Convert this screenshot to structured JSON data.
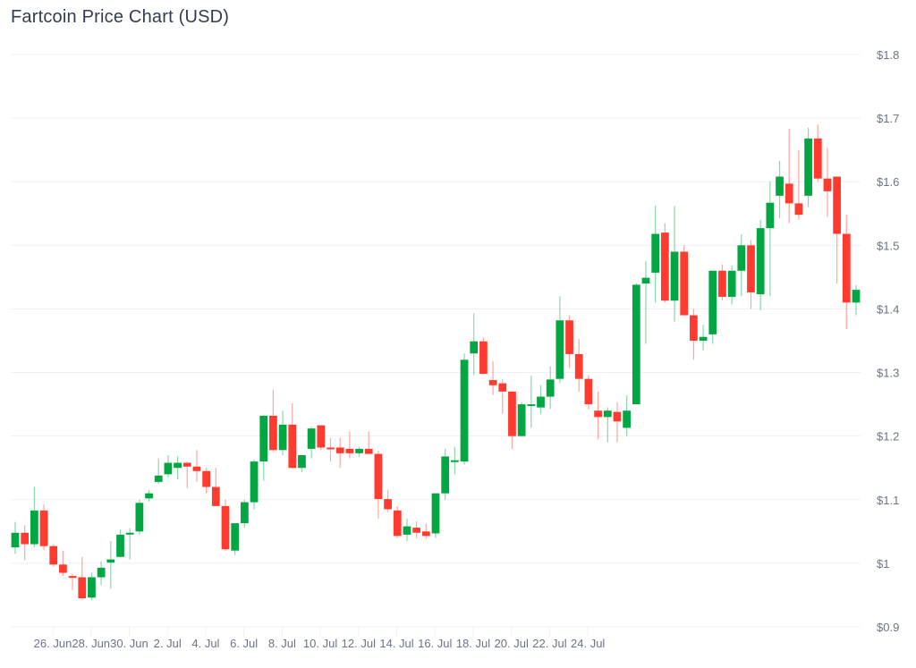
{
  "header": {
    "title": "Fartcoin Price Chart (USD)"
  },
  "colors": {
    "up": "#02a642",
    "down": "#ff3b30",
    "grid": "#eef0f3",
    "axis_text": "#6b7486"
  },
  "chart_data": {
    "type": "candlestick",
    "title": "Fartcoin Price Chart (USD)",
    "xlabel": "",
    "ylabel": "",
    "ylim": [
      0.9,
      1.8
    ],
    "grid": true,
    "legend": null,
    "y_ticks": [
      "$0.9",
      "$1",
      "$1.1",
      "$1.2",
      "$1.3",
      "$1.4",
      "$1.5",
      "$1.6",
      "$1.7",
      "$1.8"
    ],
    "x_ticks": [
      "26. Jun",
      "28. Jun",
      "30. Jun",
      "2. Jul",
      "4. Jul",
      "6. Jul",
      "8. Jul",
      "10. Jul",
      "12. Jul",
      "14. Jul",
      "16. Jul",
      "18. Jul",
      "20. Jul",
      "22. Jul",
      "24. Jul"
    ],
    "interval": "12h",
    "candles": [
      {
        "o": 1.025,
        "h": 1.065,
        "l": 1.015,
        "c": 1.048
      },
      {
        "o": 1.048,
        "h": 1.06,
        "l": 1.005,
        "c": 1.03
      },
      {
        "o": 1.03,
        "h": 1.12,
        "l": 1.025,
        "c": 1.083
      },
      {
        "o": 1.083,
        "h": 1.093,
        "l": 1.021,
        "c": 1.027
      },
      {
        "o": 1.027,
        "h": 1.03,
        "l": 0.995,
        "c": 0.998
      },
      {
        "o": 0.998,
        "h": 1.02,
        "l": 0.98,
        "c": 0.985
      },
      {
        "o": 0.98,
        "h": 0.983,
        "l": 0.958,
        "c": 0.977
      },
      {
        "o": 0.978,
        "h": 1.01,
        "l": 0.943,
        "c": 0.945
      },
      {
        "o": 0.946,
        "h": 0.985,
        "l": 0.942,
        "c": 0.978
      },
      {
        "o": 0.978,
        "h": 1.003,
        "l": 0.966,
        "c": 0.993
      },
      {
        "o": 1.001,
        "h": 1.035,
        "l": 0.96,
        "c": 1.006
      },
      {
        "o": 1.01,
        "h": 1.053,
        "l": 1.01,
        "c": 1.045
      },
      {
        "o": 1.047,
        "h": 1.055,
        "l": 1.006,
        "c": 1.048
      },
      {
        "o": 1.05,
        "h": 1.1,
        "l": 1.045,
        "c": 1.095
      },
      {
        "o": 1.102,
        "h": 1.115,
        "l": 1.097,
        "c": 1.11
      },
      {
        "o": 1.128,
        "h": 1.165,
        "l": 1.125,
        "c": 1.138
      },
      {
        "o": 1.14,
        "h": 1.17,
        "l": 1.135,
        "c": 1.158
      },
      {
        "o": 1.15,
        "h": 1.168,
        "l": 1.132,
        "c": 1.158
      },
      {
        "o": 1.158,
        "h": 1.16,
        "l": 1.118,
        "c": 1.152
      },
      {
        "o": 1.152,
        "h": 1.178,
        "l": 1.128,
        "c": 1.145
      },
      {
        "o": 1.145,
        "h": 1.15,
        "l": 1.11,
        "c": 1.12
      },
      {
        "o": 1.12,
        "h": 1.15,
        "l": 1.09,
        "c": 1.09
      },
      {
        "o": 1.09,
        "h": 1.1,
        "l": 1.02,
        "c": 1.022
      },
      {
        "o": 1.02,
        "h": 1.06,
        "l": 1.013,
        "c": 1.063
      },
      {
        "o": 1.063,
        "h": 1.1,
        "l": 1.056,
        "c": 1.096
      },
      {
        "o": 1.096,
        "h": 1.163,
        "l": 1.085,
        "c": 1.16
      },
      {
        "o": 1.16,
        "h": 1.233,
        "l": 1.13,
        "c": 1.232
      },
      {
        "o": 1.232,
        "h": 1.273,
        "l": 1.175,
        "c": 1.178
      },
      {
        "o": 1.178,
        "h": 1.24,
        "l": 1.17,
        "c": 1.218
      },
      {
        "o": 1.218,
        "h": 1.252,
        "l": 1.149,
        "c": 1.15
      },
      {
        "o": 1.15,
        "h": 1.165,
        "l": 1.143,
        "c": 1.17
      },
      {
        "o": 1.18,
        "h": 1.215,
        "l": 1.165,
        "c": 1.212
      },
      {
        "o": 1.217,
        "h": 1.217,
        "l": 1.178,
        "c": 1.182
      },
      {
        "o": 1.182,
        "h": 1.197,
        "l": 1.16,
        "c": 1.18
      },
      {
        "o": 1.182,
        "h": 1.197,
        "l": 1.15,
        "c": 1.173
      },
      {
        "o": 1.18,
        "h": 1.207,
        "l": 1.165,
        "c": 1.173
      },
      {
        "o": 1.173,
        "h": 1.183,
        "l": 1.167,
        "c": 1.18
      },
      {
        "o": 1.18,
        "h": 1.207,
        "l": 1.172,
        "c": 1.172
      },
      {
        "o": 1.172,
        "h": 1.177,
        "l": 1.07,
        "c": 1.101
      },
      {
        "o": 1.101,
        "h": 1.115,
        "l": 1.08,
        "c": 1.085
      },
      {
        "o": 1.083,
        "h": 1.09,
        "l": 1.04,
        "c": 1.043
      },
      {
        "o": 1.045,
        "h": 1.07,
        "l": 1.035,
        "c": 1.058
      },
      {
        "o": 1.056,
        "h": 1.066,
        "l": 1.04,
        "c": 1.048
      },
      {
        "o": 1.05,
        "h": 1.062,
        "l": 1.038,
        "c": 1.043
      },
      {
        "o": 1.047,
        "h": 1.073,
        "l": 1.04,
        "c": 1.11
      },
      {
        "o": 1.11,
        "h": 1.18,
        "l": 1.1,
        "c": 1.168
      },
      {
        "o": 1.162,
        "h": 1.183,
        "l": 1.14,
        "c": 1.162
      },
      {
        "o": 1.16,
        "h": 1.33,
        "l": 1.155,
        "c": 1.32
      },
      {
        "o": 1.33,
        "h": 1.393,
        "l": 1.296,
        "c": 1.349
      },
      {
        "o": 1.349,
        "h": 1.355,
        "l": 1.297,
        "c": 1.298
      },
      {
        "o": 1.288,
        "h": 1.318,
        "l": 1.265,
        "c": 1.28
      },
      {
        "o": 1.283,
        "h": 1.29,
        "l": 1.235,
        "c": 1.27
      },
      {
        "o": 1.27,
        "h": 1.27,
        "l": 1.18,
        "c": 1.2
      },
      {
        "o": 1.2,
        "h": 1.253,
        "l": 1.2,
        "c": 1.25
      },
      {
        "o": 1.25,
        "h": 1.295,
        "l": 1.213,
        "c": 1.25
      },
      {
        "o": 1.245,
        "h": 1.28,
        "l": 1.235,
        "c": 1.262
      },
      {
        "o": 1.262,
        "h": 1.31,
        "l": 1.243,
        "c": 1.289
      },
      {
        "o": 1.29,
        "h": 1.42,
        "l": 1.283,
        "c": 1.382
      },
      {
        "o": 1.382,
        "h": 1.39,
        "l": 1.307,
        "c": 1.329
      },
      {
        "o": 1.329,
        "h": 1.353,
        "l": 1.27,
        "c": 1.29
      },
      {
        "o": 1.29,
        "h": 1.296,
        "l": 1.242,
        "c": 1.25
      },
      {
        "o": 1.24,
        "h": 1.27,
        "l": 1.195,
        "c": 1.23
      },
      {
        "o": 1.23,
        "h": 1.245,
        "l": 1.19,
        "c": 1.24
      },
      {
        "o": 1.238,
        "h": 1.253,
        "l": 1.19,
        "c": 1.223
      },
      {
        "o": 1.213,
        "h": 1.264,
        "l": 1.2,
        "c": 1.24
      },
      {
        "o": 1.25,
        "h": 1.44,
        "l": 1.25,
        "c": 1.438
      },
      {
        "o": 1.44,
        "h": 1.475,
        "l": 1.345,
        "c": 1.449
      },
      {
        "o": 1.457,
        "h": 1.562,
        "l": 1.41,
        "c": 1.518
      },
      {
        "o": 1.52,
        "h": 1.535,
        "l": 1.41,
        "c": 1.413
      },
      {
        "o": 1.413,
        "h": 1.562,
        "l": 1.38,
        "c": 1.49
      },
      {
        "o": 1.49,
        "h": 1.5,
        "l": 1.395,
        "c": 1.39
      },
      {
        "o": 1.39,
        "h": 1.4,
        "l": 1.32,
        "c": 1.35
      },
      {
        "o": 1.35,
        "h": 1.375,
        "l": 1.335,
        "c": 1.356
      },
      {
        "o": 1.36,
        "h": 1.46,
        "l": 1.345,
        "c": 1.46
      },
      {
        "o": 1.46,
        "h": 1.47,
        "l": 1.413,
        "c": 1.419
      },
      {
        "o": 1.419,
        "h": 1.468,
        "l": 1.407,
        "c": 1.46
      },
      {
        "o": 1.46,
        "h": 1.517,
        "l": 1.42,
        "c": 1.5
      },
      {
        "o": 1.5,
        "h": 1.508,
        "l": 1.4,
        "c": 1.426
      },
      {
        "o": 1.423,
        "h": 1.54,
        "l": 1.398,
        "c": 1.527
      },
      {
        "o": 1.527,
        "h": 1.6,
        "l": 1.42,
        "c": 1.567
      },
      {
        "o": 1.578,
        "h": 1.633,
        "l": 1.543,
        "c": 1.608
      },
      {
        "o": 1.597,
        "h": 1.683,
        "l": 1.535,
        "c": 1.566
      },
      {
        "o": 1.566,
        "h": 1.65,
        "l": 1.54,
        "c": 1.548
      },
      {
        "o": 1.578,
        "h": 1.685,
        "l": 1.56,
        "c": 1.668
      },
      {
        "o": 1.668,
        "h": 1.69,
        "l": 1.6,
        "c": 1.605
      },
      {
        "o": 1.605,
        "h": 1.653,
        "l": 1.545,
        "c": 1.585
      },
      {
        "o": 1.608,
        "h": 1.608,
        "l": 1.44,
        "c": 1.518
      },
      {
        "o": 1.518,
        "h": 1.548,
        "l": 1.368,
        "c": 1.41
      },
      {
        "o": 1.41,
        "h": 1.437,
        "l": 1.39,
        "c": 1.43
      }
    ]
  }
}
